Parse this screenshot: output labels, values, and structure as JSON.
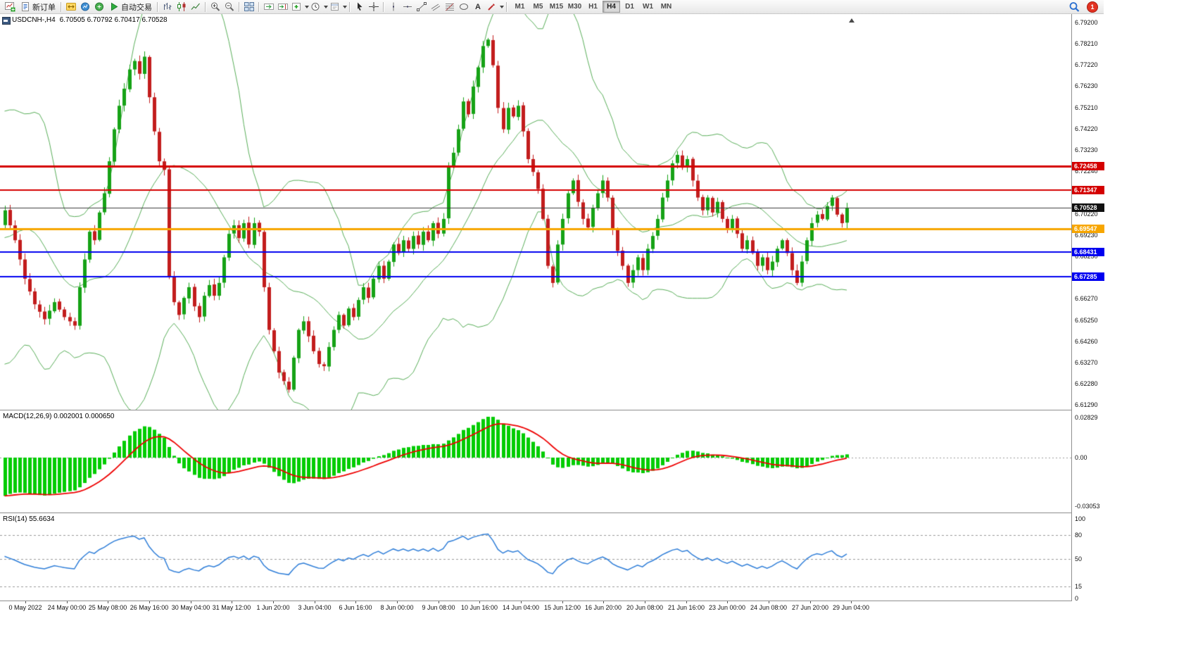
{
  "toolbar": {
    "new_order_label": "新订单",
    "autotrade_label": "自动交易",
    "text_tool_label": "A",
    "timeframes": [
      "M1",
      "M5",
      "M15",
      "M30",
      "H1",
      "H4",
      "D1",
      "W1",
      "MN"
    ],
    "active_timeframe": "H4",
    "notification_badge": "1",
    "icons": [
      "new-chart",
      "new-order",
      "metaeditor",
      "market-watch",
      "data-window",
      "autotrade",
      "bar-chart",
      "candlestick-chart",
      "line-chart",
      "zoom-in",
      "zoom-out",
      "tile-windows",
      "auto-scroll",
      "chart-shift",
      "indicators",
      "periods",
      "templates",
      "cursor",
      "crosshair",
      "vertical-line",
      "horizontal-line",
      "trendline",
      "channel",
      "fibonacci",
      "shapes",
      "text",
      "arrows",
      "search",
      "notifications"
    ]
  },
  "chart": {
    "title": "USDCNH-,H4",
    "ohlc": "6.70505 6.70792 6.70417 6.70528",
    "price_ticks": [
      "6.79200",
      "6.78210",
      "6.77220",
      "6.76230",
      "6.75210",
      "6.74220",
      "6.73230",
      "6.72240",
      "6.71250",
      "6.70220",
      "6.69230",
      "6.68250",
      "6.67260",
      "6.66270",
      "6.65250",
      "6.64260",
      "6.63270",
      "6.62280",
      "6.61290"
    ],
    "levels": [
      {
        "price": 6.72458,
        "label": "6.72458",
        "color": "#d40000",
        "width": 3
      },
      {
        "price": 6.71347,
        "label": "6.71347",
        "color": "#d40000",
        "width": 2
      },
      {
        "price": 6.69547,
        "label": "6.69547",
        "color": "#f7a600",
        "width": 3
      },
      {
        "price": 6.68431,
        "label": "6.68431",
        "color": "#0000f0",
        "width": 2
      },
      {
        "price": 6.67285,
        "label": "6.67285",
        "color": "#0000f0",
        "width": 2
      }
    ],
    "bid": {
      "price": 6.70528,
      "label": "6.70528",
      "line_color": "#3c3c3c",
      "badge_bg": "#101010"
    },
    "time_labels": [
      "0 May 2022",
      "24 May 00:00",
      "25 May 08:00",
      "26 May 16:00",
      "30 May 04:00",
      "31 May 12:00",
      "1 Jun 20:00",
      "3 Jun 04:00",
      "6 Jun 16:00",
      "8 Jun 00:00",
      "9 Jun 08:00",
      "10 Jun 16:00",
      "14 Jun 04:00",
      "15 Jun 12:00",
      "16 Jun 20:00",
      "20 Jun 08:00",
      "21 Jun 16:00",
      "23 Jun 00:00",
      "24 Jun 08:00",
      "27 Jun 20:00",
      "29 Jun 04:00"
    ],
    "colors": {
      "bull": "#16a216",
      "bear": "#c21d1d",
      "bollinger": "#58ad58",
      "macd_hist": "#00cc00",
      "macd_signal": "#ee0000",
      "rsi": "#2f7ed8",
      "grid": "#9a9a9a"
    }
  },
  "macd_panel": {
    "label": "MACD(12,26,9) 0.002001 0.000650",
    "axis_top": "0.02829",
    "axis_zero": "0.00",
    "axis_bottom": "-0.03053"
  },
  "rsi_panel": {
    "label": "RSI(14) 55.6634",
    "axis": [
      [
        "100",
        100
      ],
      [
        "80",
        80
      ],
      [
        "50",
        50
      ],
      [
        "15",
        15
      ],
      [
        "0",
        0
      ]
    ],
    "level_values": [
      80,
      50,
      15
    ]
  },
  "chart_data": {
    "type": "candlestick",
    "symbol": "USDCNH",
    "period": "H4",
    "price_range": [
      6.6129,
      6.792
    ],
    "candle_count": 170,
    "close_anchors": [
      [
        0,
        6.704
      ],
      [
        2,
        6.69
      ],
      [
        4,
        6.672
      ],
      [
        6,
        6.66
      ],
      [
        8,
        6.653
      ],
      [
        10,
        6.661
      ],
      [
        12,
        6.654
      ],
      [
        14,
        6.65
      ],
      [
        15,
        6.668
      ],
      [
        16,
        6.681
      ],
      [
        17,
        6.694
      ],
      [
        18,
        6.69
      ],
      [
        19,
        6.703
      ],
      [
        20,
        6.712
      ],
      [
        21,
        6.727
      ],
      [
        22,
        6.742
      ],
      [
        23,
        6.753
      ],
      [
        24,
        6.761
      ],
      [
        25,
        6.77
      ],
      [
        26,
        6.774
      ],
      [
        27,
        6.768
      ],
      [
        28,
        6.776
      ],
      [
        29,
        6.757
      ],
      [
        30,
        6.741
      ],
      [
        31,
        6.727
      ],
      [
        32,
        6.723
      ],
      [
        33,
        6.673
      ],
      [
        34,
        6.661
      ],
      [
        35,
        6.655
      ],
      [
        36,
        6.663
      ],
      [
        37,
        6.668
      ],
      [
        38,
        6.659
      ],
      [
        39,
        6.654
      ],
      [
        40,
        6.664
      ],
      [
        41,
        6.669
      ],
      [
        42,
        6.664
      ],
      [
        43,
        6.67
      ],
      [
        44,
        6.682
      ],
      [
        45,
        6.693
      ],
      [
        46,
        6.697
      ],
      [
        47,
        6.691
      ],
      [
        48,
        6.698
      ],
      [
        49,
        6.688
      ],
      [
        50,
        6.698
      ],
      [
        51,
        6.694
      ],
      [
        52,
        6.668
      ],
      [
        53,
        6.648
      ],
      [
        54,
        6.638
      ],
      [
        55,
        6.628
      ],
      [
        56,
        6.624
      ],
      [
        57,
        6.62
      ],
      [
        58,
        6.635
      ],
      [
        59,
        6.648
      ],
      [
        60,
        6.652
      ],
      [
        61,
        6.645
      ],
      [
        62,
        6.638
      ],
      [
        63,
        6.632
      ],
      [
        64,
        6.631
      ],
      [
        65,
        6.64
      ],
      [
        66,
        6.648
      ],
      [
        67,
        6.655
      ],
      [
        68,
        6.65
      ],
      [
        69,
        6.658
      ],
      [
        70,
        6.654
      ],
      [
        71,
        6.662
      ],
      [
        72,
        6.668
      ],
      [
        73,
        6.663
      ],
      [
        74,
        6.672
      ],
      [
        75,
        6.678
      ],
      [
        76,
        6.672
      ],
      [
        77,
        6.68
      ],
      [
        78,
        6.688
      ],
      [
        79,
        6.684
      ],
      [
        80,
        6.69
      ],
      [
        81,
        6.686
      ],
      [
        82,
        6.692
      ],
      [
        83,
        6.688
      ],
      [
        84,
        6.694
      ],
      [
        85,
        6.69
      ],
      [
        86,
        6.698
      ],
      [
        87,
        6.693
      ],
      [
        88,
        6.7
      ],
      [
        89,
        6.725
      ],
      [
        90,
        6.731
      ],
      [
        91,
        6.742
      ],
      [
        92,
        6.755
      ],
      [
        93,
        6.749
      ],
      [
        94,
        6.762
      ],
      [
        95,
        6.771
      ],
      [
        96,
        6.781
      ],
      [
        97,
        6.784
      ],
      [
        98,
        6.772
      ],
      [
        99,
        6.752
      ],
      [
        100,
        6.742
      ],
      [
        101,
        6.752
      ],
      [
        102,
        6.748
      ],
      [
        103,
        6.753
      ],
      [
        104,
        6.741
      ],
      [
        105,
        6.728
      ],
      [
        106,
        6.722
      ],
      [
        107,
        6.714
      ],
      [
        108,
        6.7
      ],
      [
        109,
        6.678
      ],
      [
        110,
        6.67
      ],
      [
        111,
        6.688
      ],
      [
        112,
        6.7
      ],
      [
        113,
        6.712
      ],
      [
        114,
        6.718
      ],
      [
        115,
        6.708
      ],
      [
        116,
        6.7
      ],
      [
        117,
        6.696
      ],
      [
        118,
        6.705
      ],
      [
        119,
        6.712
      ],
      [
        120,
        6.718
      ],
      [
        121,
        6.71
      ],
      [
        122,
        6.695
      ],
      [
        123,
        6.685
      ],
      [
        124,
        6.678
      ],
      [
        125,
        6.67
      ],
      [
        126,
        6.676
      ],
      [
        127,
        6.682
      ],
      [
        128,
        6.676
      ],
      [
        129,
        6.686
      ],
      [
        130,
        6.692
      ],
      [
        131,
        6.7
      ],
      [
        132,
        6.71
      ],
      [
        133,
        6.718
      ],
      [
        134,
        6.726
      ],
      [
        135,
        6.73
      ],
      [
        136,
        6.724
      ],
      [
        137,
        6.728
      ],
      [
        138,
        6.718
      ],
      [
        139,
        6.71
      ],
      [
        140,
        6.704
      ],
      [
        141,
        6.71
      ],
      [
        142,
        6.703
      ],
      [
        143,
        6.708
      ],
      [
        144,
        6.7
      ],
      [
        145,
        6.695
      ],
      [
        146,
        6.7
      ],
      [
        147,
        6.693
      ],
      [
        148,
        6.686
      ],
      [
        149,
        6.69
      ],
      [
        150,
        6.684
      ],
      [
        151,
        6.678
      ],
      [
        152,
        6.682
      ],
      [
        153,
        6.676
      ],
      [
        154,
        6.68
      ],
      [
        155,
        6.686
      ],
      [
        156,
        6.69
      ],
      [
        157,
        6.684
      ],
      [
        158,
        6.676
      ],
      [
        159,
        6.67
      ],
      [
        160,
        6.68
      ],
      [
        161,
        6.69
      ],
      [
        162,
        6.698
      ],
      [
        163,
        6.702
      ],
      [
        164,
        6.7
      ],
      [
        165,
        6.706
      ],
      [
        166,
        6.71
      ],
      [
        167,
        6.702
      ],
      [
        168,
        6.698
      ],
      [
        169,
        6.70528
      ]
    ],
    "pre_history": {
      "count": 26,
      "base": 6.7,
      "amp": 0.045,
      "freq": 0.5
    },
    "wick_seed": 20220629,
    "wick_base": 0.0007,
    "wick_rand": 0.0022,
    "open_jitter": 0.0006,
    "bollinger": {
      "period": 20,
      "deviation": 2
    },
    "macd": {
      "fast": 12,
      "slow": 26,
      "signal": 9,
      "seed_offset": 0.028
    },
    "rsi": {
      "period": 14
    }
  }
}
